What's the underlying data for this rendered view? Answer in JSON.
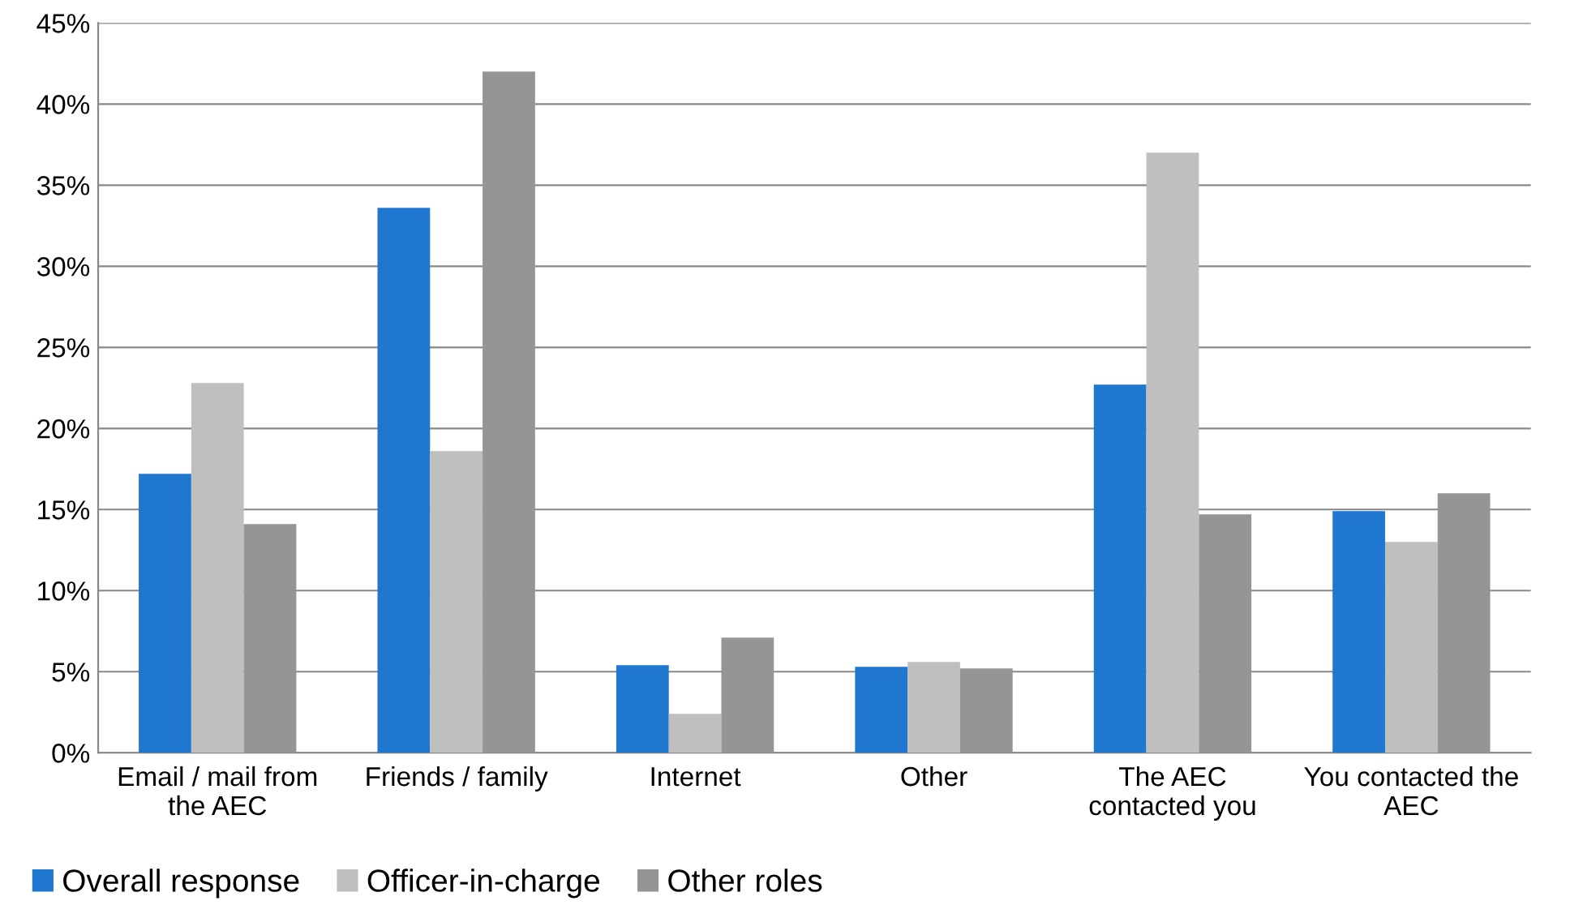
{
  "chart_data": {
    "type": "bar",
    "categories": [
      "Email / mail from\nthe AEC",
      "Friends / family",
      "Internet",
      "Other",
      "The AEC\ncontacted you",
      "You contacted the\nAEC"
    ],
    "series": [
      {
        "name": "Overall response",
        "color": "#1f77d0",
        "values": [
          17.2,
          33.6,
          5.4,
          5.3,
          22.7,
          14.9
        ]
      },
      {
        "name": "Officer-in-charge",
        "color": "#bfbfbf",
        "values": [
          22.8,
          18.6,
          2.4,
          5.6,
          37.0,
          13.0
        ]
      },
      {
        "name": "Other roles",
        "color": "#959598",
        "values": [
          14.1,
          42.0,
          7.1,
          5.2,
          14.7,
          16.0
        ]
      }
    ],
    "ylim": [
      0,
      45
    ],
    "yticks": [
      {
        "value": 0,
        "label": "0%"
      },
      {
        "value": 5,
        "label": "5%"
      },
      {
        "value": 10,
        "label": "10%"
      },
      {
        "value": 15,
        "label": "15%"
      },
      {
        "value": 20,
        "label": "20%"
      },
      {
        "value": 25,
        "label": "25%"
      },
      {
        "value": 30,
        "label": "30%"
      },
      {
        "value": 35,
        "label": "35%"
      },
      {
        "value": 40,
        "label": "40%"
      },
      {
        "value": 45,
        "label": "45%"
      }
    ],
    "grid": "y",
    "legend": "bottom left"
  }
}
